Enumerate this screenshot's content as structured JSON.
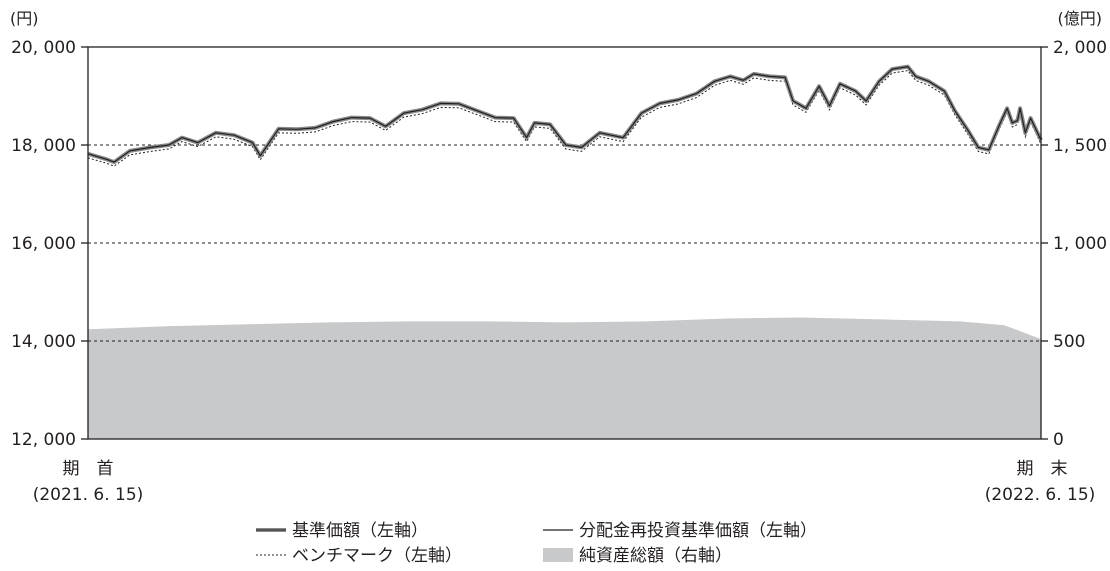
{
  "chart_data": {
    "type": "line",
    "y_left": {
      "unit": "(円)",
      "range": [
        12000,
        20000
      ],
      "ticks": [
        "12, 000",
        "14, 000",
        "16, 000",
        "18, 000",
        "20, 000"
      ]
    },
    "y_right": {
      "unit": "(億円)",
      "range": [
        0,
        2000
      ],
      "ticks": [
        "0",
        "500",
        "1, 000",
        "1, 500",
        "2, 000"
      ]
    },
    "x_range": [
      "2021-06-15",
      "2022-06-15"
    ],
    "start": {
      "label": "期　首",
      "date": "(2021. 6. 15)"
    },
    "end": {
      "label": "期　末",
      "date": "(2022. 6. 15)"
    },
    "grid": "dashed horizontal at 14,000 / 16,000 / 18,000",
    "legend": [
      {
        "name": "基準価額（左軸）",
        "symbol": "thick-gray-line"
      },
      {
        "name": "分配金再投資基準価額（左軸）",
        "symbol": "thin-black-line"
      },
      {
        "name": "ベンチマーク（左軸）",
        "symbol": "dotted-line"
      },
      {
        "name": "純資産総額（右軸）",
        "symbol": "gray-area"
      }
    ],
    "series": [
      {
        "name": "基準価額（左軸）",
        "axis": "left",
        "points": [
          [
            "2021-06-15",
            17820
          ],
          [
            "2021-06-22",
            17710
          ],
          [
            "2021-06-25",
            17650
          ],
          [
            "2021-07-01",
            17880
          ],
          [
            "2021-07-09",
            17950
          ],
          [
            "2021-07-16",
            18000
          ],
          [
            "2021-07-21",
            18150
          ],
          [
            "2021-07-27",
            18050
          ],
          [
            "2021-08-03",
            18250
          ],
          [
            "2021-08-10",
            18200
          ],
          [
            "2021-08-17",
            18050
          ],
          [
            "2021-08-20",
            17780
          ],
          [
            "2021-08-27",
            18330
          ],
          [
            "2021-09-03",
            18320
          ],
          [
            "2021-09-10",
            18350
          ],
          [
            "2021-09-17",
            18480
          ],
          [
            "2021-09-24",
            18560
          ],
          [
            "2021-10-01",
            18550
          ],
          [
            "2021-10-07",
            18380
          ],
          [
            "2021-10-14",
            18650
          ],
          [
            "2021-10-21",
            18720
          ],
          [
            "2021-10-28",
            18850
          ],
          [
            "2021-11-04",
            18840
          ],
          [
            "2021-11-11",
            18700
          ],
          [
            "2021-11-18",
            18560
          ],
          [
            "2021-11-25",
            18550
          ],
          [
            "2021-11-30",
            18150
          ],
          [
            "2021-12-03",
            18450
          ],
          [
            "2021-12-09",
            18420
          ],
          [
            "2021-12-15",
            18000
          ],
          [
            "2021-12-21",
            17950
          ],
          [
            "2021-12-28",
            18250
          ],
          [
            "2022-01-06",
            18150
          ],
          [
            "2022-01-13",
            18650
          ],
          [
            "2022-01-20",
            18850
          ],
          [
            "2022-01-27",
            18920
          ],
          [
            "2022-02-03",
            19050
          ],
          [
            "2022-02-10",
            19300
          ],
          [
            "2022-02-16",
            19400
          ],
          [
            "2022-02-21",
            19320
          ],
          [
            "2022-02-25",
            19450
          ],
          [
            "2022-03-03",
            19400
          ],
          [
            "2022-03-09",
            19380
          ],
          [
            "2022-03-12",
            18900
          ],
          [
            "2022-03-17",
            18750
          ],
          [
            "2022-03-22",
            19200
          ],
          [
            "2022-03-26",
            18800
          ],
          [
            "2022-03-30",
            19250
          ],
          [
            "2022-04-05",
            19100
          ],
          [
            "2022-04-09",
            18900
          ],
          [
            "2022-04-14",
            19300
          ],
          [
            "2022-04-19",
            19550
          ],
          [
            "2022-04-25",
            19600
          ],
          [
            "2022-04-28",
            19400
          ],
          [
            "2022-05-03",
            19300
          ],
          [
            "2022-05-09",
            19100
          ],
          [
            "2022-05-13",
            18700
          ],
          [
            "2022-05-18",
            18300
          ],
          [
            "2022-05-22",
            17950
          ],
          [
            "2022-05-26",
            17900
          ],
          [
            "2022-05-30",
            18400
          ],
          [
            "2022-06-02",
            18750
          ],
          [
            "2022-06-04",
            18450
          ],
          [
            "2022-06-06",
            18500
          ],
          [
            "2022-06-07",
            18750
          ],
          [
            "2022-06-09",
            18250
          ],
          [
            "2022-06-11",
            18550
          ],
          [
            "2022-06-15",
            18100
          ]
        ]
      },
      {
        "name": "純資産総額（右軸）",
        "axis": "right",
        "points": [
          [
            "2021-06-15",
            560
          ],
          [
            "2021-07-15",
            575
          ],
          [
            "2021-08-15",
            585
          ],
          [
            "2021-09-15",
            595
          ],
          [
            "2021-10-15",
            600
          ],
          [
            "2021-11-15",
            600
          ],
          [
            "2021-12-15",
            595
          ],
          [
            "2022-01-15",
            600
          ],
          [
            "2022-02-15",
            615
          ],
          [
            "2022-03-15",
            620
          ],
          [
            "2022-04-15",
            610
          ],
          [
            "2022-05-15",
            600
          ],
          [
            "2022-06-01",
            580
          ],
          [
            "2022-06-15",
            510
          ]
        ]
      }
    ]
  }
}
